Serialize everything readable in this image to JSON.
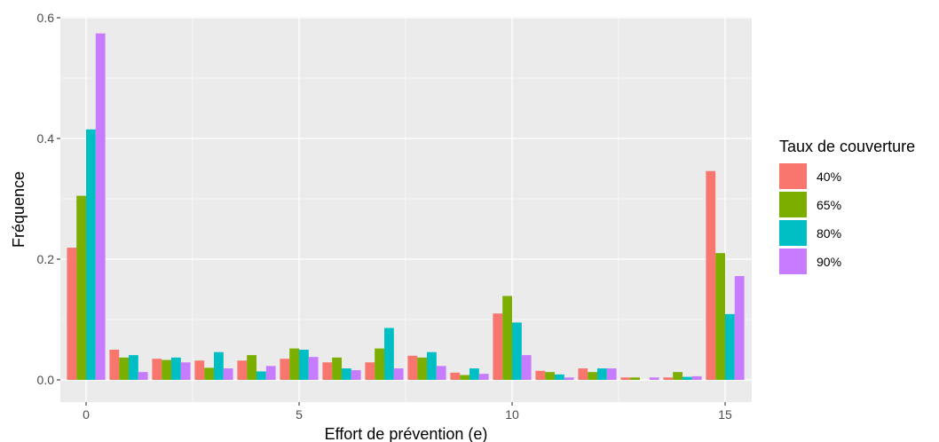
{
  "chart_data": {
    "type": "bar",
    "xlabel": "Effort de prévention (e)",
    "ylabel": "Fréquence",
    "x_ticks": [
      0,
      5,
      10,
      15
    ],
    "y_ticks": [
      0.0,
      0.2,
      0.4,
      0.6
    ],
    "y_tick_labels": [
      "0.0",
      "0.2",
      "0.4",
      "0.6"
    ],
    "xlim": [
      -0.5,
      15.5
    ],
    "ylim": [
      0,
      0.6
    ],
    "grid": true,
    "legend_position": "right",
    "legend_title": "Taux de couverture",
    "categories": [
      0,
      1,
      2,
      3,
      4,
      5,
      6,
      7,
      8,
      9,
      10,
      11,
      12,
      13,
      14,
      15
    ],
    "series": [
      {
        "name": "40%",
        "color": "#F8766D",
        "values": [
          0.219,
          0.05,
          0.035,
          0.032,
          0.032,
          0.035,
          0.029,
          0.029,
          0.04,
          0.012,
          0.11,
          0.015,
          0.019,
          0.004,
          0.004,
          0.346
        ]
      },
      {
        "name": "65%",
        "color": "#7CAE00",
        "values": [
          0.305,
          0.037,
          0.033,
          0.02,
          0.041,
          0.052,
          0.037,
          0.052,
          0.037,
          0.008,
          0.139,
          0.013,
          0.013,
          0.004,
          0.013,
          0.21
        ]
      },
      {
        "name": "80%",
        "color": "#00BFC4",
        "values": [
          0.415,
          0.041,
          0.037,
          0.046,
          0.014,
          0.05,
          0.019,
          0.086,
          0.046,
          0.019,
          0.095,
          0.009,
          0.019,
          0.0,
          0.005,
          0.109
        ]
      },
      {
        "name": "90%",
        "color": "#C77CFF",
        "values": [
          0.574,
          0.013,
          0.029,
          0.019,
          0.023,
          0.038,
          0.016,
          0.019,
          0.023,
          0.01,
          0.041,
          0.004,
          0.019,
          0.004,
          0.006,
          0.172
        ]
      }
    ]
  }
}
